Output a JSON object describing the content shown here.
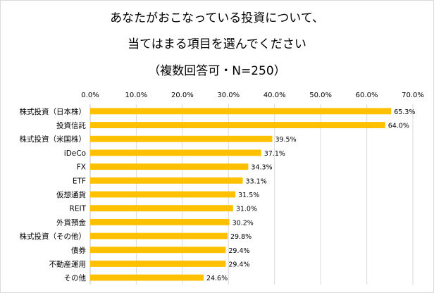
{
  "chart_data": {
    "type": "bar",
    "orientation": "horizontal",
    "title_lines": [
      "あなたがおこなっている投資について、",
      "当てはまる項目を選んでください",
      "（複数回答可・N=250）"
    ],
    "categories": [
      "株式投資（日本株）",
      "投資信託",
      "株式投資（米国株）",
      "iDeCo",
      "FX",
      "ETF",
      "仮想通貨",
      "REIT",
      "外貨預金",
      "株式投資（その他）",
      "債券",
      "不動産運用",
      "その他"
    ],
    "values": [
      65.3,
      64.0,
      39.5,
      37.1,
      34.3,
      33.1,
      31.5,
      31.0,
      30.2,
      29.8,
      29.4,
      29.4,
      24.6
    ],
    "value_labels": [
      "65.3%",
      "64.0%",
      "39.5%",
      "37.1%",
      "34.3%",
      "33.1%",
      "31.5%",
      "31.0%",
      "30.2%",
      "29.8%",
      "29.4%",
      "29.4%",
      "24.6%"
    ],
    "xlim": [
      0,
      70
    ],
    "x_ticks": [
      0,
      10,
      20,
      30,
      40,
      50,
      60,
      70
    ],
    "x_tick_labels": [
      "0.0%",
      "10.0%",
      "20.0%",
      "30.0%",
      "40.0%",
      "50.0%",
      "60.0%",
      "70.0%"
    ],
    "axis_position": "top",
    "gridlines": true,
    "legend": "none",
    "bar_color": "#FFC000",
    "grid_color": "#d9d9d9"
  }
}
